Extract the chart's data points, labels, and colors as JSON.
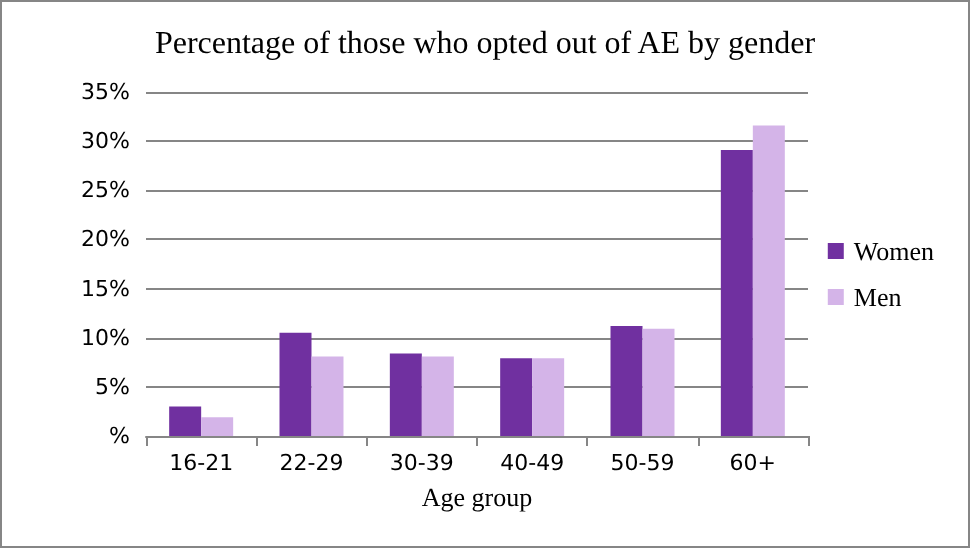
{
  "chart_data": {
    "type": "bar",
    "title": "Percentage of those who opted out of AE by gender",
    "xlabel": "Age group",
    "categories": [
      "16-21",
      "22-29",
      "30-39",
      "40-49",
      "50-59",
      "60+"
    ],
    "series": [
      {
        "name": "Women",
        "color": "#7030a0",
        "values": [
          3.0,
          10.5,
          8.4,
          7.9,
          11.2,
          29.1
        ]
      },
      {
        "name": "Men",
        "color": "#d4b4e8",
        "values": [
          1.9,
          8.1,
          8.1,
          7.9,
          10.9,
          31.6
        ]
      }
    ],
    "ylim": [
      0,
      35
    ],
    "yticks": [
      {
        "value": 0,
        "label": "%"
      },
      {
        "value": 5,
        "label": "5%"
      },
      {
        "value": 10,
        "label": "10%"
      },
      {
        "value": 15,
        "label": "15%"
      },
      {
        "value": 20,
        "label": "20%"
      },
      {
        "value": 25,
        "label": "25%"
      },
      {
        "value": 30,
        "label": "30%"
      },
      {
        "value": 35,
        "label": "35%"
      }
    ],
    "grid": "y",
    "legend": "right"
  }
}
